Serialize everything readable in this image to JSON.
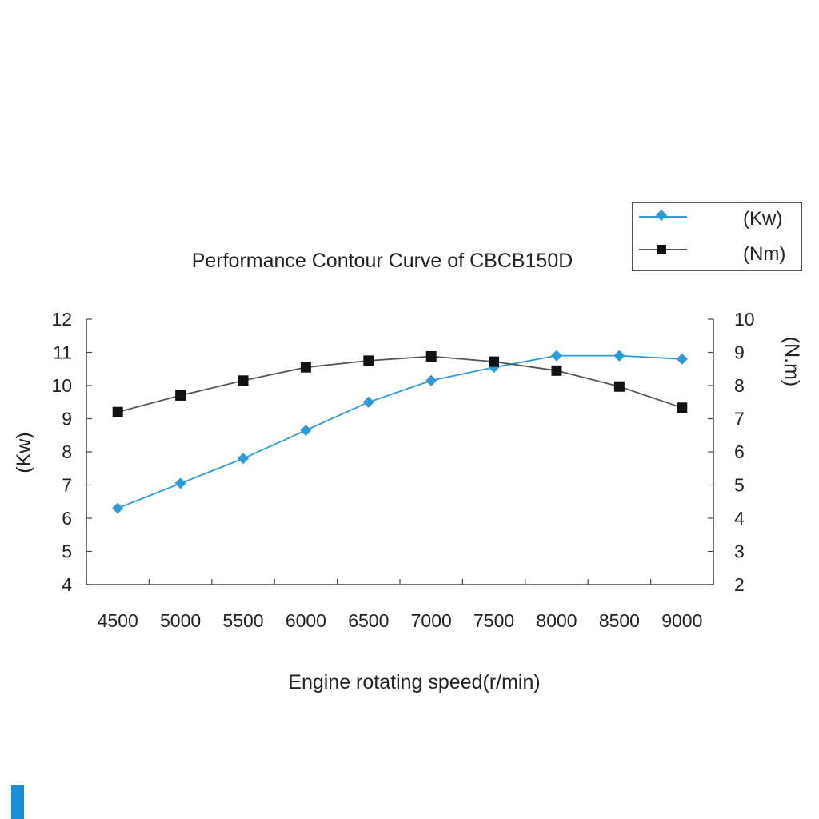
{
  "colors": {
    "kw_series": "#2e9bd6",
    "nm_series": "#111111",
    "axis": "#444444",
    "accent": "#1a8fd6"
  },
  "chart_data": {
    "type": "line",
    "title": "Performance Contour Curve of CBCB150D",
    "xlabel": "Engine rotating speed(r/min)",
    "ylabel_left": "(Kw)",
    "ylabel_right": "(N.m)",
    "categories": [
      "4500",
      "5000",
      "5500",
      "6000",
      "6500",
      "7000",
      "7500",
      "8000",
      "8500",
      "9000"
    ],
    "ylim_left": [
      4,
      12
    ],
    "ylim_right": [
      2,
      10
    ],
    "yticks_left": [
      "12",
      "11",
      "10",
      "9",
      "8",
      "7",
      "6",
      "5",
      "4"
    ],
    "yticks_right": [
      "10",
      "9",
      "8",
      "7",
      "6",
      "5",
      "4",
      "3",
      "2"
    ],
    "series": [
      {
        "name": "(Kw)",
        "axis": "left",
        "marker": "diamond",
        "values": [
          6.3,
          7.05,
          7.8,
          8.65,
          9.5,
          10.15,
          10.55,
          10.9,
          10.9,
          10.8
        ]
      },
      {
        "name": "(Nm)",
        "axis": "right",
        "marker": "square",
        "values": [
          7.2,
          7.7,
          8.15,
          8.55,
          8.75,
          8.88,
          8.72,
          8.45,
          7.97,
          7.33
        ]
      }
    ],
    "legend": {
      "position": "top-right",
      "entries": [
        "(Kw)",
        "(Nm)"
      ]
    }
  }
}
